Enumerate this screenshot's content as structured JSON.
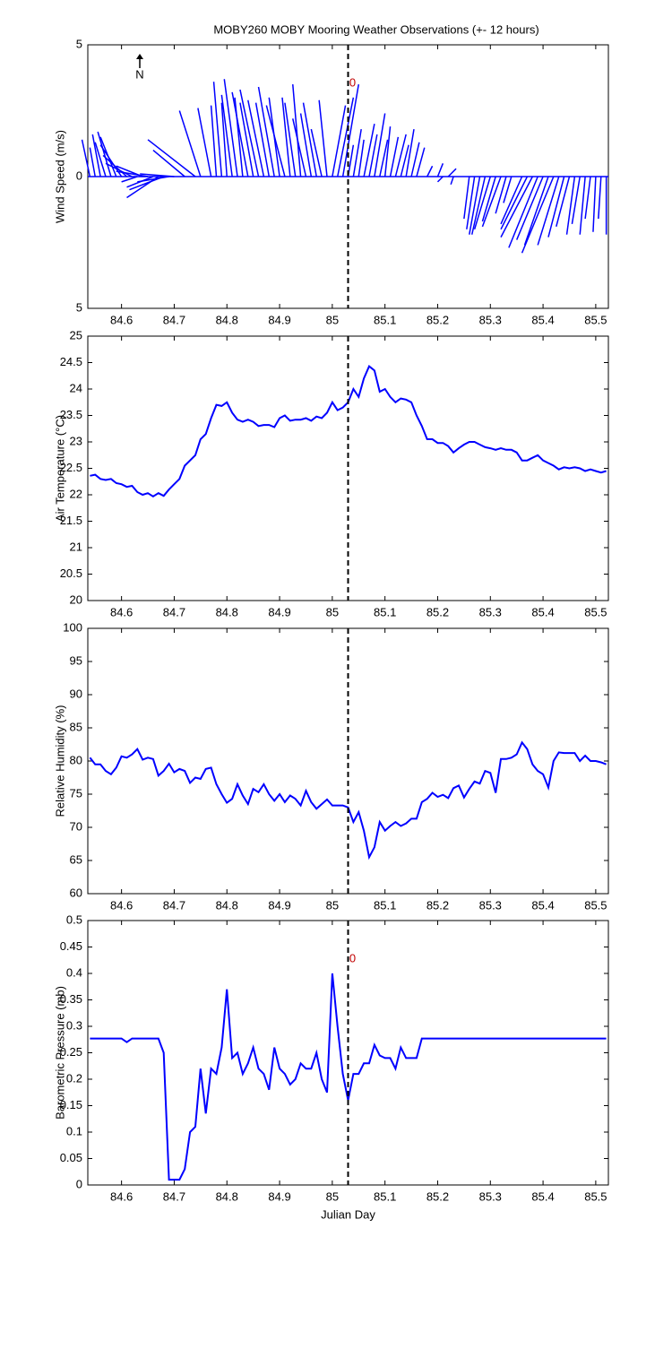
{
  "chart_data": [
    {
      "type": "quiver",
      "title": "MOBY260 MOBY Mooring Weather Observations (+- 12 hours)",
      "ylabel": "Wind Speed (m/s)",
      "color": "#0000ff",
      "north_label": "N",
      "vline": 85.03,
      "vline_label": "0",
      "xlim": [
        84.536,
        85.524
      ],
      "xticks": [
        84.6,
        84.7,
        84.8,
        84.9,
        85,
        85.1,
        85.2,
        85.3,
        85.4,
        85.5
      ],
      "ylim": [
        -5,
        5
      ],
      "yticks": [
        {
          "value": -5,
          "label": "5"
        },
        0,
        5
      ],
      "x": [
        84.54,
        84.55,
        84.56,
        84.57,
        84.58,
        84.59,
        84.6,
        84.61,
        84.62,
        84.63,
        84.64,
        84.65,
        84.66,
        84.67,
        84.68,
        84.69,
        84.7,
        84.72,
        84.74,
        84.75,
        84.77,
        84.78,
        84.79,
        84.8,
        84.81,
        84.82,
        84.83,
        84.84,
        84.85,
        84.86,
        84.87,
        84.88,
        84.89,
        84.9,
        84.91,
        84.92,
        84.93,
        84.94,
        84.95,
        84.96,
        84.97,
        84.98,
        84.99,
        85,
        85.01,
        85.02,
        85.03,
        85.04,
        85.05,
        85.06,
        85.07,
        85.08,
        85.09,
        85.1,
        85.11,
        85.12,
        85.13,
        85.14,
        85.15,
        85.16,
        85.18,
        85.2,
        85.21,
        85.22,
        85.23,
        85.26,
        85.27,
        85.28,
        85.29,
        85.3,
        85.31,
        85.32,
        85.33,
        85.34,
        85.36,
        85.37,
        85.38,
        85.39,
        85.4,
        85.41,
        85.42,
        85.43,
        85.44,
        85.45,
        85.46,
        85.47,
        85.48,
        85.49,
        85.5,
        85.51,
        85.52
      ],
      "u": [
        -0.3,
        -0.2,
        -0.3,
        -0.4,
        -0.5,
        -0.6,
        -0.8,
        -0.9,
        -1.0,
        -0.6,
        -1.0,
        -1.2,
        -1.0,
        -1.2,
        -1.3,
        -1.2,
        -1.3,
        -1.2,
        -1.8,
        -0.8,
        -0.5,
        -0.2,
        -0.3,
        -0.2,
        -0.4,
        -0.5,
        -0.3,
        -0.6,
        -0.5,
        -0.7,
        -0.6,
        -0.5,
        -0.6,
        -0.4,
        -0.7,
        -0.3,
        -0.4,
        -0.3,
        -0.5,
        -0.4,
        -0.5,
        -0.4,
        -0.3,
        0.5,
        0.6,
        0.6,
        0.2,
        0.3,
        0.2,
        0.4,
        0.3,
        0.4,
        0.3,
        0.2,
        0.3,
        0.4,
        0.3,
        0.3,
        0.3,
        0.3,
        0.2,
        0.2,
        -0.2,
        0.3,
        -0.1,
        -0.2,
        -0.3,
        -0.4,
        -0.5,
        -0.6,
        -0.5,
        -0.7,
        -0.4,
        -0.3,
        -0.8,
        -1.0,
        -1.2,
        -1.1,
        -1.0,
        -0.9,
        -1.2,
        -0.8,
        -0.6,
        -0.5,
        -0.3,
        -0.3,
        -0.2,
        -0.2,
        -0.1,
        -0.1,
        0.0
      ],
      "v": [
        1.4,
        1.1,
        1.6,
        1.3,
        1.7,
        1.5,
        1.2,
        0.8,
        0.5,
        -0.2,
        0.4,
        0.2,
        -0.4,
        -0.8,
        -0.5,
        -0.2,
        0.1,
        1.0,
        1.4,
        2.5,
        2.6,
        2.7,
        3.6,
        2.8,
        3.1,
        3.7,
        3.0,
        3.2,
        2.8,
        3.3,
        2.9,
        2.8,
        3.4,
        3.0,
        2.7,
        3.0,
        2.8,
        3.5,
        2.2,
        2.4,
        2.8,
        1.8,
        2.9,
        2.7,
        3.0,
        3.5,
        1.2,
        1.8,
        1.4,
        2.0,
        1.6,
        2.4,
        1.4,
        1.9,
        1.5,
        1.6,
        1.2,
        1.8,
        1.3,
        1.1,
        0.4,
        0.5,
        -0.2,
        0.3,
        -0.3,
        -1.6,
        -2.0,
        -2.2,
        -2.2,
        -2.0,
        -1.7,
        -1.9,
        -1.4,
        -1.0,
        -1.8,
        -2.0,
        -2.3,
        -2.7,
        -2.4,
        -2.6,
        -2.9,
        -2.6,
        -2.3,
        -1.9,
        -2.2,
        -1.8,
        -2.2,
        -1.6,
        -2.1,
        -1.6,
        -2.2
      ]
    },
    {
      "type": "line",
      "ylabel": "Air Temperature (°C)",
      "color": "#0000ff",
      "vline": 85.03,
      "xlim": [
        84.536,
        85.524
      ],
      "xticks": [
        84.6,
        84.7,
        84.8,
        84.9,
        85,
        85.1,
        85.2,
        85.3,
        85.4,
        85.5
      ],
      "ylim": [
        20,
        25
      ],
      "yticks": [
        20,
        20.5,
        21,
        21.5,
        22,
        22.5,
        23,
        23.5,
        24,
        24.5,
        25
      ],
      "x": [
        84.54,
        84.55,
        84.56,
        84.57,
        84.58,
        84.59,
        84.6,
        84.61,
        84.62,
        84.63,
        84.64,
        84.65,
        84.66,
        84.67,
        84.68,
        84.69,
        84.7,
        84.71,
        84.72,
        84.73,
        84.74,
        84.75,
        84.76,
        84.77,
        84.78,
        84.79,
        84.8,
        84.81,
        84.82,
        84.83,
        84.84,
        84.85,
        84.86,
        84.87,
        84.88,
        84.89,
        84.9,
        84.91,
        84.92,
        84.93,
        84.94,
        84.95,
        84.96,
        84.97,
        84.98,
        84.99,
        85,
        85.01,
        85.02,
        85.03,
        85.04,
        85.05,
        85.06,
        85.07,
        85.08,
        85.09,
        85.1,
        85.11,
        85.12,
        85.13,
        85.14,
        85.15,
        85.16,
        85.17,
        85.18,
        85.19,
        85.2,
        85.21,
        85.22,
        85.23,
        85.24,
        85.25,
        85.26,
        85.27,
        85.28,
        85.29,
        85.3,
        85.31,
        85.32,
        85.33,
        85.34,
        85.35,
        85.36,
        85.37,
        85.38,
        85.39,
        85.4,
        85.41,
        85.42,
        85.43,
        85.44,
        85.45,
        85.46,
        85.47,
        85.48,
        85.49,
        85.5,
        85.51,
        85.52
      ],
      "values": [
        22.36,
        22.38,
        22.3,
        22.28,
        22.3,
        22.22,
        22.2,
        22.15,
        22.17,
        22.05,
        22.0,
        22.03,
        21.97,
        22.03,
        21.98,
        22.1,
        22.2,
        22.3,
        22.55,
        22.65,
        22.75,
        23.05,
        23.15,
        23.45,
        23.7,
        23.68,
        23.75,
        23.55,
        23.42,
        23.38,
        23.42,
        23.38,
        23.3,
        23.32,
        23.32,
        23.28,
        23.45,
        23.5,
        23.4,
        23.42,
        23.42,
        23.45,
        23.4,
        23.48,
        23.45,
        23.55,
        23.75,
        23.6,
        23.65,
        23.75,
        24.0,
        23.85,
        24.2,
        24.43,
        24.35,
        23.95,
        24.0,
        23.85,
        23.75,
        23.82,
        23.8,
        23.75,
        23.5,
        23.3,
        23.05,
        23.05,
        22.98,
        22.98,
        22.92,
        22.8,
        22.88,
        22.95,
        23.0,
        23.0,
        22.95,
        22.9,
        22.88,
        22.85,
        22.88,
        22.85,
        22.85,
        22.8,
        22.65,
        22.65,
        22.7,
        22.75,
        22.65,
        22.6,
        22.55,
        22.48,
        22.52,
        22.5,
        22.52,
        22.5,
        22.45,
        22.48,
        22.45,
        22.42,
        22.45
      ]
    },
    {
      "type": "line",
      "ylabel": "Relative Humidity (%)",
      "color": "#0000ff",
      "vline": 85.03,
      "xlim": [
        84.536,
        85.524
      ],
      "xticks": [
        84.6,
        84.7,
        84.8,
        84.9,
        85,
        85.1,
        85.2,
        85.3,
        85.4,
        85.5
      ],
      "ylim": [
        60,
        100
      ],
      "yticks": [
        60,
        65,
        70,
        75,
        80,
        85,
        90,
        95,
        100
      ],
      "x": [
        84.54,
        84.55,
        84.56,
        84.57,
        84.58,
        84.59,
        84.6,
        84.61,
        84.62,
        84.63,
        84.64,
        84.65,
        84.66,
        84.67,
        84.68,
        84.69,
        84.7,
        84.71,
        84.72,
        84.73,
        84.74,
        84.75,
        84.76,
        84.77,
        84.78,
        84.79,
        84.8,
        84.81,
        84.82,
        84.83,
        84.84,
        84.85,
        84.86,
        84.87,
        84.88,
        84.89,
        84.9,
        84.91,
        84.92,
        84.93,
        84.94,
        84.95,
        84.96,
        84.97,
        84.98,
        84.99,
        85,
        85.01,
        85.02,
        85.03,
        85.04,
        85.05,
        85.06,
        85.07,
        85.08,
        85.09,
        85.1,
        85.11,
        85.12,
        85.13,
        85.14,
        85.15,
        85.16,
        85.17,
        85.18,
        85.19,
        85.2,
        85.21,
        85.22,
        85.23,
        85.24,
        85.25,
        85.26,
        85.27,
        85.28,
        85.29,
        85.3,
        85.31,
        85.32,
        85.33,
        85.34,
        85.35,
        85.36,
        85.37,
        85.38,
        85.39,
        85.4,
        85.41,
        85.42,
        85.43,
        85.44,
        85.45,
        85.46,
        85.47,
        85.48,
        85.49,
        85.5,
        85.51,
        85.52
      ],
      "values": [
        80.5,
        79.5,
        79.5,
        78.5,
        78.0,
        79.0,
        80.7,
        80.5,
        81.0,
        81.8,
        80.2,
        80.5,
        80.3,
        77.8,
        78.5,
        79.6,
        78.3,
        78.8,
        78.5,
        76.7,
        77.5,
        77.3,
        78.8,
        79.0,
        76.5,
        75.0,
        73.7,
        74.3,
        76.5,
        74.8,
        73.5,
        75.8,
        75.3,
        76.5,
        75.0,
        74.0,
        75.0,
        73.8,
        74.8,
        74.3,
        73.3,
        75.5,
        73.8,
        72.8,
        73.5,
        74.2,
        73.3,
        73.3,
        73.3,
        73.0,
        70.8,
        72.3,
        69.5,
        65.5,
        67.0,
        70.8,
        69.5,
        70.2,
        70.8,
        70.2,
        70.6,
        71.3,
        71.3,
        73.8,
        74.3,
        75.2,
        74.6,
        74.9,
        74.4,
        75.9,
        76.3,
        74.5,
        75.8,
        76.9,
        76.6,
        78.5,
        78.2,
        75.2,
        80.3,
        80.3,
        80.5,
        81.0,
        82.8,
        81.8,
        79.5,
        78.5,
        78.0,
        76.0,
        80.0,
        81.3,
        81.2,
        81.2,
        81.2,
        80.0,
        80.8,
        80.0,
        80.0,
        79.8,
        79.5
      ]
    },
    {
      "type": "line",
      "ylabel": "Barometric Pressure (mb)",
      "xlabel": "Julian Day",
      "color": "#0000ff",
      "vline": 85.03,
      "vline_label": "0",
      "xlim": [
        84.536,
        85.524
      ],
      "xticks": [
        84.6,
        84.7,
        84.8,
        84.9,
        85,
        85.1,
        85.2,
        85.3,
        85.4,
        85.5
      ],
      "ylim": [
        0,
        0.5
      ],
      "yticks": [
        0,
        0.05,
        0.1,
        0.15,
        0.2,
        0.25,
        0.3,
        0.35,
        0.4,
        0.45,
        0.5
      ],
      "x": [
        84.54,
        84.55,
        84.56,
        84.57,
        84.58,
        84.59,
        84.6,
        84.61,
        84.62,
        84.63,
        84.64,
        84.65,
        84.66,
        84.67,
        84.68,
        84.69,
        84.7,
        84.71,
        84.72,
        84.73,
        84.74,
        84.75,
        84.76,
        84.77,
        84.78,
        84.79,
        84.8,
        84.81,
        84.82,
        84.83,
        84.84,
        84.85,
        84.86,
        84.87,
        84.88,
        84.89,
        84.9,
        84.91,
        84.92,
        84.93,
        84.94,
        84.95,
        84.96,
        84.97,
        84.98,
        84.99,
        85,
        85.01,
        85.02,
        85.03,
        85.04,
        85.05,
        85.06,
        85.07,
        85.08,
        85.09,
        85.1,
        85.11,
        85.12,
        85.13,
        85.14,
        85.15,
        85.16,
        85.17,
        85.18,
        85.19,
        85.2,
        85.21,
        85.22,
        85.23,
        85.24,
        85.25,
        85.26,
        85.27,
        85.28,
        85.29,
        85.3,
        85.31,
        85.32,
        85.33,
        85.34,
        85.35,
        85.36,
        85.37,
        85.38,
        85.39,
        85.4,
        85.41,
        85.42,
        85.43,
        85.44,
        85.45,
        85.46,
        85.47,
        85.48,
        85.49,
        85.5,
        85.51,
        85.52
      ],
      "values": [
        0.277,
        0.277,
        0.277,
        0.277,
        0.277,
        0.277,
        0.277,
        0.27,
        0.277,
        0.277,
        0.277,
        0.277,
        0.277,
        0.277,
        0.25,
        0.01,
        0.01,
        0.01,
        0.03,
        0.1,
        0.11,
        0.22,
        0.135,
        0.22,
        0.21,
        0.26,
        0.37,
        0.24,
        0.25,
        0.21,
        0.23,
        0.26,
        0.22,
        0.21,
        0.18,
        0.26,
        0.22,
        0.21,
        0.19,
        0.2,
        0.23,
        0.22,
        0.22,
        0.25,
        0.2,
        0.175,
        0.4,
        0.3,
        0.21,
        0.16,
        0.21,
        0.21,
        0.23,
        0.23,
        0.265,
        0.245,
        0.24,
        0.24,
        0.22,
        0.26,
        0.24,
        0.24,
        0.24,
        0.277,
        0.277,
        0.277,
        0.277,
        0.277,
        0.277,
        0.277,
        0.277,
        0.277,
        0.277,
        0.277,
        0.277,
        0.277,
        0.277,
        0.277,
        0.277,
        0.277,
        0.277,
        0.277,
        0.277,
        0.277,
        0.277,
        0.277,
        0.277,
        0.277,
        0.277,
        0.277,
        0.277,
        0.277,
        0.277,
        0.277,
        0.277,
        0.277,
        0.277,
        0.277,
        0.277
      ]
    }
  ]
}
